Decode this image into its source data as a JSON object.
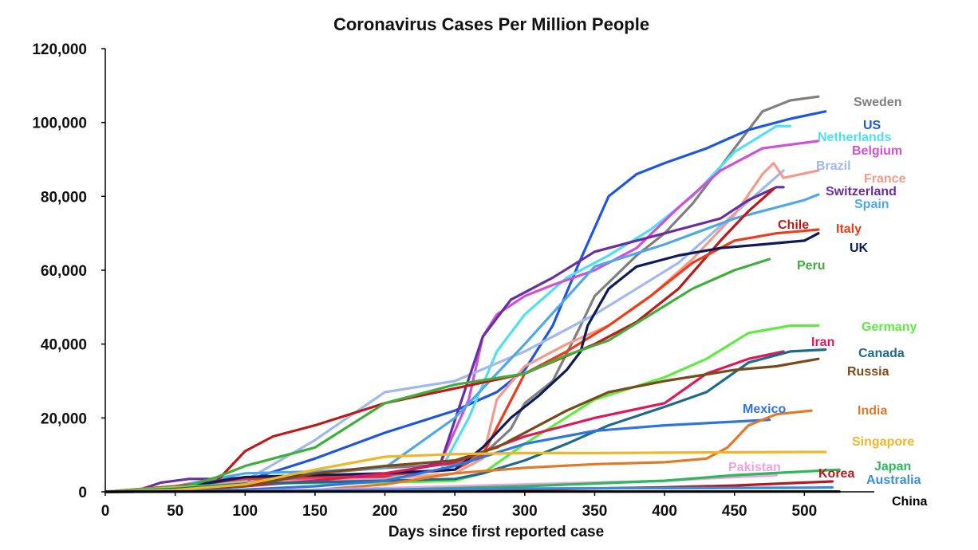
{
  "chart_data": {
    "type": "line",
    "title": "Coronavirus Cases Per Million People",
    "xlabel": "Days since first reported case",
    "ylabel": "",
    "xlim": [
      0,
      550
    ],
    "ylim": [
      0,
      120000
    ],
    "xticks": [
      "0",
      "50",
      "100",
      "150",
      "200",
      "250",
      "300",
      "350",
      "400",
      "450",
      "500"
    ],
    "yticks": [
      "0",
      "20,000",
      "40,000",
      "60,000",
      "80,000",
      "100,000",
      "120,000"
    ],
    "grid": false,
    "legend": "labels at line ends",
    "series": [
      {
        "name": "Sweden",
        "color": "#7f7f7f",
        "x": [
          0,
          50,
          100,
          150,
          200,
          250,
          270,
          290,
          300,
          320,
          340,
          350,
          380,
          400,
          420,
          440,
          460,
          470,
          490,
          510
        ],
        "y": [
          0,
          500,
          2500,
          5000,
          6500,
          7500,
          10000,
          17000,
          24000,
          30000,
          45000,
          53000,
          64000,
          70000,
          78000,
          88000,
          98000,
          103000,
          106000,
          107000
        ]
      },
      {
        "name": "US",
        "color": "#1f56e0",
        "x": [
          0,
          50,
          100,
          150,
          200,
          250,
          280,
          300,
          320,
          340,
          360,
          380,
          400,
          430,
          460,
          490,
          515
        ],
        "y": [
          0,
          1000,
          3000,
          9000,
          16000,
          22000,
          27000,
          33000,
          45000,
          63000,
          80000,
          86000,
          89000,
          93000,
          98000,
          101000,
          103000
        ]
      },
      {
        "name": "Netherlands",
        "color": "#4fe0f0",
        "x": [
          0,
          50,
          100,
          150,
          200,
          240,
          260,
          280,
          300,
          330,
          360,
          390,
          420,
          450,
          480,
          490
        ],
        "y": [
          0,
          600,
          2500,
          3000,
          3500,
          6000,
          20000,
          38000,
          48000,
          58000,
          64000,
          71000,
          80000,
          92000,
          99000,
          99000
        ]
      },
      {
        "name": "Belgium",
        "color": "#d050d8",
        "x": [
          0,
          50,
          100,
          150,
          200,
          240,
          260,
          270,
          280,
          300,
          320,
          350,
          380,
          410,
          440,
          470,
          510
        ],
        "y": [
          0,
          500,
          2500,
          3500,
          4000,
          8000,
          25000,
          42000,
          48000,
          53000,
          56000,
          60000,
          66000,
          77000,
          87000,
          93000,
          95000
        ]
      },
      {
        "name": "Brazil",
        "color": "#a0b8f0",
        "x": [
          0,
          50,
          100,
          150,
          200,
          250,
          300,
          350,
          380,
          410,
          440,
          470,
          485
        ],
        "y": [
          0,
          300,
          3000,
          14000,
          27000,
          30000,
          38000,
          48000,
          55000,
          62000,
          72000,
          82000,
          87000
        ]
      },
      {
        "name": "France",
        "color": "#f29b8c",
        "x": [
          0,
          50,
          100,
          150,
          200,
          250,
          270,
          280,
          300,
          330,
          360,
          390,
          420,
          450,
          470,
          478,
          485,
          510
        ],
        "y": [
          0,
          800,
          2500,
          3000,
          3500,
          5000,
          9000,
          25000,
          34000,
          40000,
          45000,
          53000,
          63000,
          75000,
          86000,
          89000,
          85000,
          87000
        ]
      },
      {
        "name": "Switzerland",
        "color": "#6a2ea0",
        "x": [
          0,
          20,
          40,
          60,
          80,
          100,
          150,
          200,
          240,
          255,
          270,
          290,
          320,
          350,
          400,
          440,
          460,
          480,
          485
        ],
        "y": [
          0,
          0,
          2500,
          3500,
          3500,
          3800,
          4000,
          4200,
          8000,
          25000,
          42000,
          52000,
          58000,
          65000,
          70000,
          74000,
          79000,
          82500,
          82500
        ]
      },
      {
        "name": "Spain",
        "color": "#4fa8e6",
        "x": [
          0,
          50,
          100,
          150,
          200,
          250,
          300,
          350,
          400,
          450,
          500,
          510
        ],
        "y": [
          0,
          1500,
          5000,
          5500,
          6500,
          20000,
          40000,
          61000,
          67000,
          74000,
          79000,
          80500
        ]
      },
      {
        "name": "Chile",
        "color": "#c01818",
        "x": [
          0,
          50,
          80,
          100,
          120,
          150,
          200,
          250,
          300,
          350,
          380,
          410,
          440,
          460,
          478
        ],
        "y": [
          0,
          500,
          3000,
          11000,
          15000,
          18000,
          24000,
          28000,
          32000,
          40000,
          46000,
          55000,
          68000,
          76000,
          82000
        ]
      },
      {
        "name": "Italy",
        "color": "#f03a18",
        "x": [
          0,
          50,
          100,
          150,
          200,
          250,
          270,
          300,
          330,
          360,
          390,
          420,
          450,
          480,
          510
        ],
        "y": [
          0,
          1500,
          3500,
          4000,
          4500,
          6000,
          10000,
          32000,
          38000,
          45000,
          53000,
          62000,
          68000,
          70000,
          71000
        ]
      },
      {
        "name": "UK",
        "color": "#0e1b5a",
        "x": [
          0,
          50,
          100,
          150,
          200,
          250,
          270,
          290,
          310,
          330,
          340,
          345,
          360,
          380,
          410,
          440,
          470,
          500,
          510
        ],
        "y": [
          0,
          1000,
          4000,
          4500,
          5000,
          6000,
          12000,
          20000,
          26000,
          33000,
          38000,
          45000,
          55000,
          61000,
          64000,
          66000,
          67000,
          68000,
          70000
        ]
      },
      {
        "name": "Peru",
        "color": "#3fae3a",
        "x": [
          0,
          50,
          80,
          100,
          150,
          200,
          250,
          300,
          330,
          360,
          390,
          420,
          450,
          475
        ],
        "y": [
          0,
          500,
          4000,
          7000,
          12000,
          24000,
          29000,
          32000,
          37000,
          41000,
          48000,
          55000,
          60000,
          63000
        ]
      },
      {
        "name": "Germany",
        "color": "#5cec40",
        "x": [
          0,
          50,
          100,
          150,
          200,
          250,
          270,
          300,
          350,
          400,
          430,
          460,
          490,
          510
        ],
        "y": [
          0,
          1200,
          2200,
          2400,
          2500,
          3000,
          5000,
          13000,
          25000,
          31000,
          36000,
          43000,
          45000,
          45000
        ]
      },
      {
        "name": "Iran",
        "color": "#e01858",
        "x": [
          0,
          50,
          100,
          150,
          200,
          250,
          300,
          350,
          400,
          430,
          460,
          485
        ],
        "y": [
          0,
          500,
          1500,
          3000,
          5000,
          8000,
          15000,
          20000,
          24000,
          32000,
          36000,
          38000
        ]
      },
      {
        "name": "Canada",
        "color": "#1e6a8e",
        "x": [
          0,
          50,
          100,
          150,
          200,
          250,
          270,
          300,
          330,
          360,
          400,
          430,
          460,
          490,
          515
        ],
        "y": [
          0,
          800,
          2200,
          2600,
          3000,
          3500,
          5000,
          8500,
          13000,
          18000,
          23000,
          27000,
          35000,
          38000,
          38500
        ]
      },
      {
        "name": "Russia",
        "color": "#7a4a1a",
        "x": [
          0,
          50,
          100,
          150,
          200,
          250,
          280,
          300,
          330,
          360,
          400,
          450,
          480,
          510
        ],
        "y": [
          0,
          300,
          1500,
          5000,
          7000,
          8500,
          12000,
          16000,
          22000,
          27000,
          30000,
          33000,
          34000,
          36000
        ]
      },
      {
        "name": "Mexico",
        "color": "#2f74e0",
        "x": [
          0,
          50,
          100,
          150,
          200,
          250,
          300,
          350,
          400,
          450,
          475
        ],
        "y": [
          0,
          200,
          600,
          1500,
          3000,
          7000,
          13000,
          16500,
          18000,
          19000,
          19500
        ]
      },
      {
        "name": "India",
        "color": "#e07a28",
        "x": [
          0,
          50,
          100,
          150,
          200,
          250,
          300,
          350,
          400,
          430,
          445,
          460,
          480,
          505
        ],
        "y": [
          0,
          100,
          200,
          500,
          2000,
          5000,
          6500,
          7500,
          8000,
          9000,
          12000,
          18000,
          21000,
          22000
        ]
      },
      {
        "name": "Singapore",
        "color": "#f0b628",
        "x": [
          0,
          50,
          100,
          150,
          200,
          250,
          300,
          350,
          400,
          450,
          500,
          515
        ],
        "y": [
          0,
          500,
          2000,
          6000,
          9500,
          10200,
          10500,
          10500,
          10600,
          10700,
          10800,
          10800
        ]
      },
      {
        "name": "Pakistan",
        "color": "#f0a0e6",
        "x": [
          0,
          100,
          200,
          300,
          400,
          450,
          480
        ],
        "y": [
          0,
          200,
          1000,
          2000,
          3000,
          4000,
          4500
        ]
      },
      {
        "name": "Japan",
        "color": "#2eb85c",
        "x": [
          0,
          100,
          200,
          300,
          400,
          450,
          500,
          525
        ],
        "y": [
          0,
          150,
          500,
          1500,
          3000,
          4500,
          5500,
          6000
        ]
      },
      {
        "name": "Korea",
        "color": "#b81820",
        "x": [
          0,
          50,
          100,
          200,
          300,
          400,
          450,
          500,
          520
        ],
        "y": [
          0,
          100,
          200,
          300,
          600,
          1200,
          1700,
          2500,
          2800
        ]
      },
      {
        "name": "Australia",
        "color": "#3a8ed8",
        "x": [
          0,
          100,
          200,
          300,
          400,
          500,
          520
        ],
        "y": [
          0,
          100,
          600,
          900,
          1000,
          1100,
          1200
        ]
      },
      {
        "name": "China",
        "color": "#000000",
        "x": [
          0,
          50,
          100,
          200,
          300,
          400,
          500,
          525
        ],
        "y": [
          0,
          60,
          60,
          60,
          70,
          70,
          70,
          70
        ]
      }
    ],
    "labels": [
      {
        "text": "Sweden",
        "color": "#7f7f7f"
      },
      {
        "text": "US",
        "color": "#1f56e0"
      },
      {
        "text": "Netherlands",
        "color": "#4fe0f0"
      },
      {
        "text": "Belgium",
        "color": "#d050d8"
      },
      {
        "text": "Brazil",
        "color": "#a0b8f0"
      },
      {
        "text": "France",
        "color": "#f29b8c"
      },
      {
        "text": "Switzerland",
        "color": "#6a2ea0"
      },
      {
        "text": "Spain",
        "color": "#4fa8e6"
      },
      {
        "text": "Chile",
        "color": "#c01818"
      },
      {
        "text": "Italy",
        "color": "#f03a18"
      },
      {
        "text": "UK",
        "color": "#0e1b5a"
      },
      {
        "text": "Peru",
        "color": "#3fae3a"
      },
      {
        "text": "Germany",
        "color": "#5cec40"
      },
      {
        "text": "Iran",
        "color": "#e01858"
      },
      {
        "text": "Canada",
        "color": "#1e6a8e"
      },
      {
        "text": "Russia",
        "color": "#7a4a1a"
      },
      {
        "text": "Mexico",
        "color": "#2f74e0"
      },
      {
        "text": "India",
        "color": "#e07a28"
      },
      {
        "text": "Singapore",
        "color": "#f0b628"
      },
      {
        "text": "Pakistan",
        "color": "#f0a0e6"
      },
      {
        "text": "Japan",
        "color": "#2eb85c"
      },
      {
        "text": "Korea",
        "color": "#b81820"
      },
      {
        "text": "Australia",
        "color": "#3a8ed8"
      },
      {
        "text": "China",
        "color": "#000000"
      }
    ]
  }
}
